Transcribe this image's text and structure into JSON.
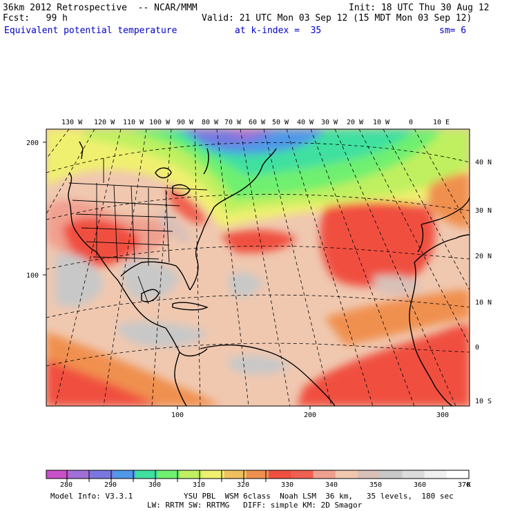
{
  "header": {
    "title": "36km 2012 Retrospective  -- NCAR/MMM",
    "init": "Init: 18 UTC Thu 30 Aug 12",
    "fcst": "Fcst:   99 h",
    "valid": "Valid: 21 UTC Mon 03 Sep 12 (15 MDT Mon 03 Sep 12)",
    "field": "Equivalent potential temperature",
    "level": "at k-index =  35",
    "smooth": "sm= 6"
  },
  "map": {
    "lon_labels_top": [
      "130 W",
      "120 W",
      "110 W",
      "100 W",
      "90 W",
      "80 W",
      "70 W",
      "60 W",
      "50 W",
      "40 W",
      "30 W",
      "20 W",
      "10 W",
      "0",
      "10 E"
    ],
    "lat_labels_right": [
      "40 N",
      "30 N",
      "20 N",
      "10 N",
      "0",
      "10 S"
    ],
    "grid_labels_left": [
      "200",
      "100"
    ],
    "grid_labels_bottom": [
      "100",
      "200",
      "300"
    ]
  },
  "colorbar": {
    "labels": [
      "280",
      "290",
      "300",
      "310",
      "320",
      "330",
      "340",
      "350",
      "360",
      "370"
    ],
    "unit": "K",
    "colors": [
      "#c850c8",
      "#a070d8",
      "#7878e0",
      "#5098e8",
      "#40e0a0",
      "#70f070",
      "#c0f060",
      "#f0f070",
      "#f0c060",
      "#f09050",
      "#f05040",
      "#f06050",
      "#f0a090",
      "#f0c8b0",
      "#d8c0b8",
      "#c8c8c8",
      "#dcdcdc",
      "#f0f0f0",
      "#ffffff"
    ]
  },
  "model_info": {
    "line1_left": "Model Info: V3.3.1",
    "line1_right": "YSU PBL  WSM 6class  Noah LSM  36 km,   35 levels,  180 sec",
    "line2": "LW: RRTM SW: RRTMG   DIFF: simple KM: 2D Smagor"
  }
}
